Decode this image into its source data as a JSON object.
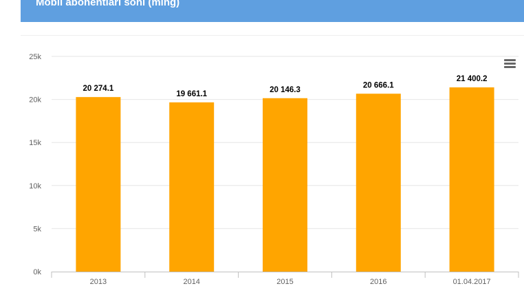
{
  "header": {
    "title": "Mobil abonentlari soni (ming)"
  },
  "colors": {
    "header_bg": "#5f9fe0",
    "bar": "#ffa500",
    "grid": "#e6e6e6",
    "axis": "#c0c0c0"
  },
  "menu": {
    "icon": "hamburger-menu-icon"
  },
  "chart_data": {
    "type": "bar",
    "title": "",
    "xlabel": "",
    "ylabel": "",
    "categories": [
      "2013",
      "2014",
      "2015",
      "2016",
      "01.04.2017"
    ],
    "values": [
      20274.1,
      19661.1,
      20146.3,
      20666.1,
      21400.2
    ],
    "data_labels": [
      "20 274.1",
      "19 661.1",
      "20 146.3",
      "20 666.1",
      "21 400.2"
    ],
    "ylim": [
      0,
      25000
    ],
    "yticks": [
      0,
      5000,
      10000,
      15000,
      20000,
      25000
    ],
    "ytick_labels": [
      "0k",
      "5k",
      "10k",
      "15k",
      "20k",
      "25k"
    ],
    "grid": true,
    "legend": "none"
  }
}
